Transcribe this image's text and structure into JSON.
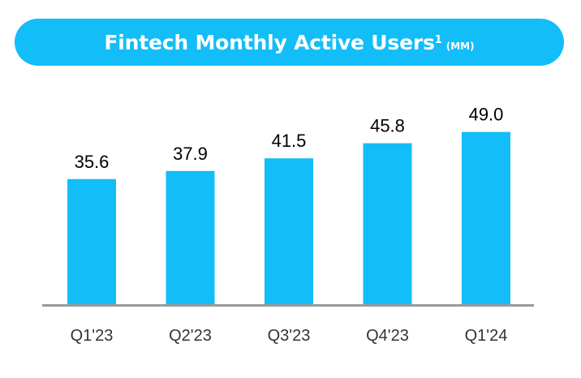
{
  "chart_data": {
    "type": "bar",
    "title": "Fintech Monthly Active Users",
    "title_superscript": "1",
    "title_unit": "(MM)",
    "categories": [
      "Q1'23",
      "Q2'23",
      "Q3'23",
      "Q4'23",
      "Q1'24"
    ],
    "values": [
      35.6,
      37.9,
      41.5,
      45.8,
      49.0
    ],
    "value_labels": [
      "35.6",
      "37.9",
      "41.5",
      "45.8",
      "49.0"
    ],
    "xlabel": "",
    "ylabel": "",
    "ylim": [
      0,
      57.7
    ],
    "grid": false,
    "legend": "none",
    "bar_color": "#12bdf8",
    "axis_color": "#9a9a9a",
    "title_bg_color": "#12bdf8"
  }
}
